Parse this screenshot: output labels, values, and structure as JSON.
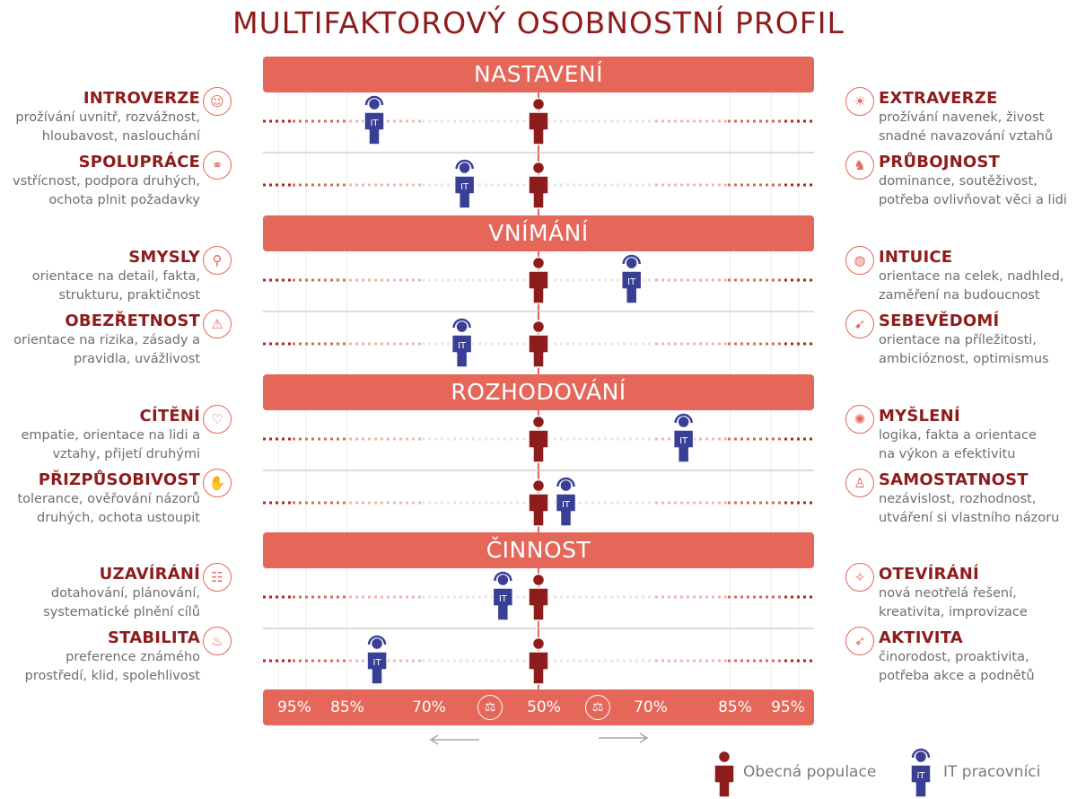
{
  "chart_data": {
    "type": "scatter",
    "title": "MULTIFAKTOROVÝ OSOBNOSTNÍ PROFIL",
    "x_scale": {
      "center": "50%",
      "tick_labels": [
        "95%",
        "85%",
        "70%",
        "50%",
        "70%",
        "85%",
        "95%"
      ],
      "tick_values": [
        -95,
        -85,
        -70,
        50,
        70,
        85,
        95
      ],
      "range": [
        -100,
        100
      ]
    },
    "series": [
      {
        "name": "Obecná populace",
        "color": "#8e1c1c"
      },
      {
        "name": "IT pracovníci",
        "color": "#3a3f96",
        "badge": "IT"
      }
    ],
    "sections": [
      {
        "label": "NASTAVENÍ",
        "rows": [
          {
            "left": {
              "name": "INTROVERZE",
              "desc": [
                "prožívání uvnitř, rozvážnost,",
                "hloubavost, naslouchání"
              ],
              "icon": "introvert-icon",
              "glyph": "☺"
            },
            "right": {
              "name": "EXTRAVERZE",
              "desc": [
                "prožívání navenek, živost",
                "snadné navazování vztahů"
              ],
              "icon": "extravert-icon",
              "glyph": "☀"
            },
            "values": {
              "Obecná populace": 0,
              "IT pracovníci": -60
            }
          },
          {
            "left": {
              "name": "SPOLUPRÁCE",
              "desc": [
                "vstřícnost, podpora druhých,",
                "ochota plnit požadavky"
              ],
              "icon": "cooperation-icon",
              "glyph": "⚭"
            },
            "right": {
              "name": "PRŮBOJNOST",
              "desc": [
                "dominance, soutěživost,",
                "potřeba ovlivňovat věci a lidi"
              ],
              "icon": "assertiveness-icon",
              "glyph": "♞"
            },
            "values": {
              "Obecná populace": 0,
              "IT pracovníci": -27
            }
          }
        ]
      },
      {
        "label": "VNÍMÁNÍ",
        "rows": [
          {
            "left": {
              "name": "SMYSLY",
              "desc": [
                "orientace na detail, fakta,",
                "strukturu, praktičnost"
              ],
              "icon": "magnifier-icon",
              "glyph": "⚲"
            },
            "right": {
              "name": "INTUICE",
              "desc": [
                "orientace na celek, nadhled,",
                "zaměření na budoucnost"
              ],
              "icon": "globe-icon",
              "glyph": "◍"
            },
            "values": {
              "Obecná populace": 0,
              "IT pracovníci": 34
            }
          },
          {
            "left": {
              "name": "OBEZŘETNOST",
              "desc": [
                "orientace na rizika, zásady a",
                "pravidla, uvážlivost"
              ],
              "icon": "warning-icon",
              "glyph": "⚠"
            },
            "right": {
              "name": "SEBEVĚDOMÍ",
              "desc": [
                "orientace na příležitosti,",
                "ambicióznost, optimismus"
              ],
              "icon": "signpost-icon",
              "glyph": "➹"
            },
            "values": {
              "Obecná populace": 0,
              "IT pracovníci": -28
            }
          }
        ]
      },
      {
        "label": "ROZHODOVÁNÍ",
        "rows": [
          {
            "left": {
              "name": "CÍTĚNÍ",
              "desc": [
                "empatie, orientace na lidi a",
                "vztahy, přijetí druhými"
              ],
              "icon": "heart-icon",
              "glyph": "♡"
            },
            "right": {
              "name": "MYŠLENÍ",
              "desc": [
                "logika, fakta a orientace",
                "na výkon a efektivitu"
              ],
              "icon": "brain-icon",
              "glyph": "✺"
            },
            "values": {
              "Obecná populace": 0,
              "IT pracovníci": 53
            }
          },
          {
            "left": {
              "name": "PŘIZPŮSOBIVOST",
              "desc": [
                "tolerance, ověřování názorů",
                "druhých, ochota ustoupit"
              ],
              "icon": "handshake-icon",
              "glyph": "✋"
            },
            "right": {
              "name": "SAMOSTATNOST",
              "desc": [
                "nezávislost, rozhodnost,",
                "utváření si vlastního názoru"
              ],
              "icon": "independence-icon",
              "glyph": "♙"
            },
            "values": {
              "Obecná populace": 0,
              "IT pracovníci": 10
            }
          }
        ]
      },
      {
        "label": "ČINNOST",
        "rows": [
          {
            "left": {
              "name": "UZAVÍRÁNÍ",
              "desc": [
                "dotahování, plánování,",
                "systematické plnění cílů"
              ],
              "icon": "checklist-icon",
              "glyph": "☷"
            },
            "right": {
              "name": "OTEVÍRÁNÍ",
              "desc": [
                "nová neotřelá řešení,",
                "kreativita, improvizace"
              ],
              "icon": "lightbulb-icon",
              "glyph": "✧"
            },
            "values": {
              "Obecná populace": 0,
              "IT pracovníci": -13
            }
          },
          {
            "left": {
              "name": "STABILITA",
              "desc": [
                "preference známého",
                "prostředí, klid, spolehlivost"
              ],
              "icon": "stability-icon",
              "glyph": "♨"
            },
            "right": {
              "name": "AKTIVITA",
              "desc": [
                "činorodost, proaktivita,",
                "potřeba akce a podnětů"
              ],
              "icon": "runner-icon",
              "glyph": "➶"
            },
            "values": {
              "Obecná populace": 0,
              "IT pracovníci": -59
            }
          }
        ]
      }
    ],
    "badge_text": "IT",
    "scale_glyph": "⚖"
  }
}
